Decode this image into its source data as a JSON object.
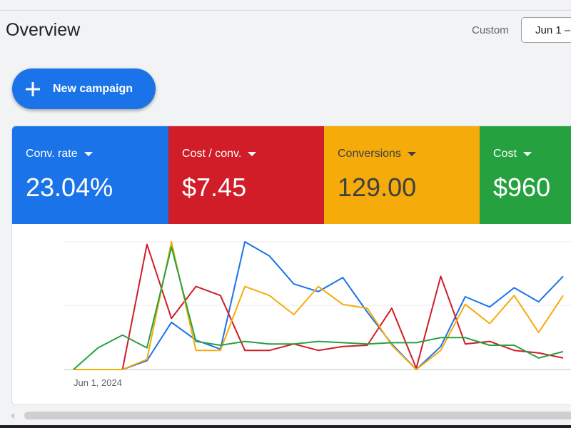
{
  "page": {
    "title": "Overview"
  },
  "date_range": {
    "label": "Custom",
    "value": "Jun 1 –"
  },
  "new_campaign": {
    "label": "New campaign"
  },
  "metrics": [
    {
      "label": "Conv. rate",
      "value": "23.04%",
      "bg": "#1a73e8",
      "fg": "#ffffff"
    },
    {
      "label": "Cost / conv.",
      "value": "$7.45",
      "bg": "#d01d27",
      "fg": "#ffffff"
    },
    {
      "label": "Conversions",
      "value": "129.00",
      "bg": "#f5ab0a",
      "fg": "#3c4043"
    },
    {
      "label": "Cost",
      "value": "$960",
      "bg": "#26a140",
      "fg": "#ffffff"
    }
  ],
  "chart_data": {
    "type": "line",
    "x_start_label": "Jun 1, 2024",
    "grid": true,
    "series": [
      {
        "color": "#1a73e8",
        "values": [
          0,
          0,
          0,
          0.07,
          0.37,
          0.23,
          0.16,
          1.0,
          0.89,
          0.67,
          0.61,
          0.72,
          0.45,
          0.2,
          0.0,
          0.18,
          0.57,
          0.49,
          0.64,
          0.53,
          0.73
        ]
      },
      {
        "color": "#d01d27",
        "values": [
          0,
          0,
          0,
          0.98,
          0.4,
          0.65,
          0.58,
          0.15,
          0.15,
          0.2,
          0.15,
          0.18,
          0.19,
          0.48,
          0.01,
          0.73,
          0.2,
          0.22,
          0.15,
          0.13,
          0.09
        ]
      },
      {
        "color": "#f5ab0a",
        "values": [
          0,
          0,
          0,
          0.08,
          1.0,
          0.15,
          0.15,
          0.65,
          0.58,
          0.43,
          0.65,
          0.51,
          0.48,
          0.19,
          0.0,
          0.15,
          0.51,
          0.36,
          0.58,
          0.29,
          0.58
        ]
      },
      {
        "color": "#26a140",
        "values": [
          0,
          0.17,
          0.27,
          0.17,
          0.96,
          0.22,
          0.19,
          0.22,
          0.2,
          0.2,
          0.22,
          0.21,
          0.2,
          0.21,
          0.21,
          0.25,
          0.25,
          0.19,
          0.19,
          0.09,
          0.14
        ]
      }
    ],
    "ylim": [
      0,
      1
    ]
  }
}
